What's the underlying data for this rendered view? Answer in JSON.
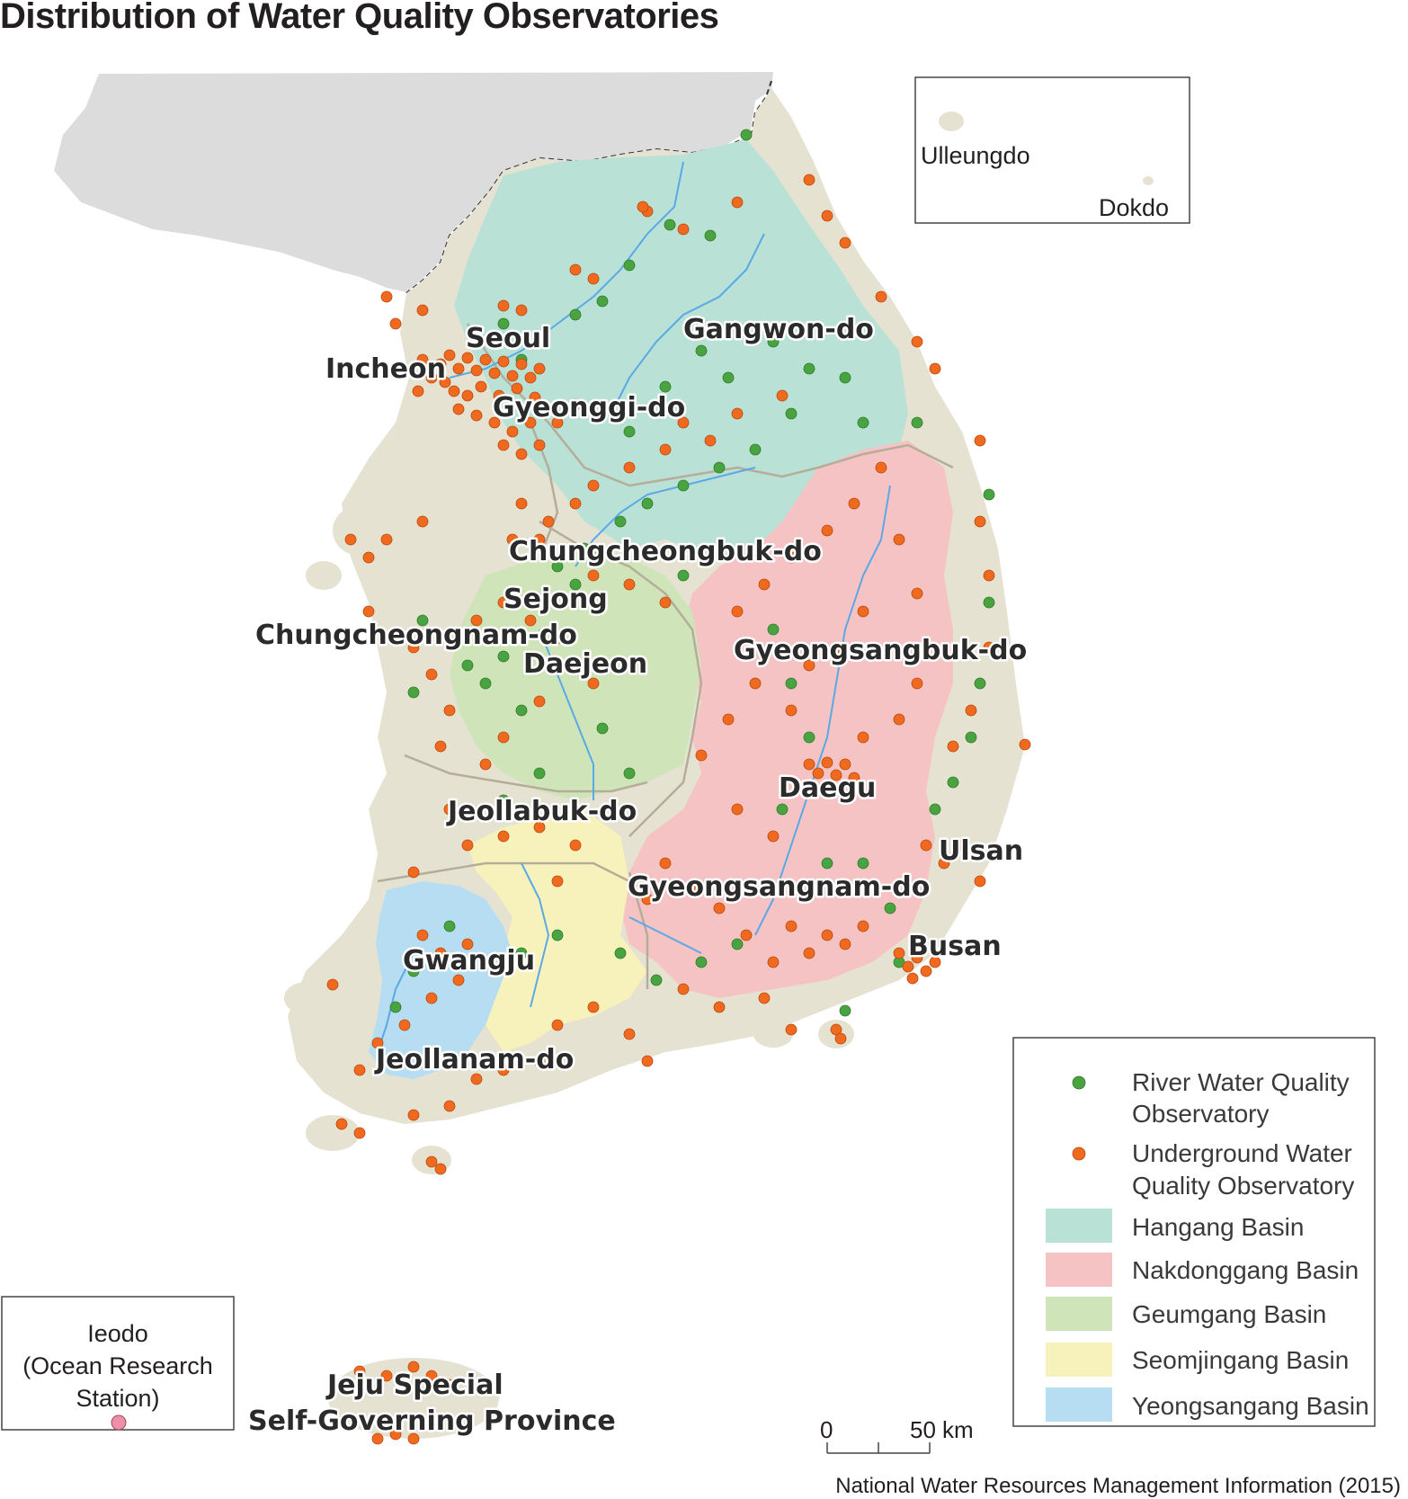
{
  "title": "Distribution of Water Quality Observatories",
  "source": "National Water Resources Management Information (2015)",
  "insets": {
    "ulleung": {
      "label_ulleungdo": "Ulleungdo",
      "label_dokdo": "Dokdo"
    },
    "ieodo": {
      "line1": "Ieodo",
      "line2": "(Ocean Research",
      "line3": "Station)"
    }
  },
  "regions": {
    "seoul": "Seoul",
    "incheon": "Incheon",
    "gyeonggi": "Gyeonggi-do",
    "gangwon": "Gangwon-do",
    "chungbuk": "Chungcheongbuk-do",
    "sejong": "Sejong",
    "chungnam": "Chungcheongnam-do",
    "daejeon": "Daejeon",
    "gyeongbuk": "Gyeongsangbuk-do",
    "daegu": "Daegu",
    "jeonbuk": "Jeollabuk-do",
    "ulsan": "Ulsan",
    "gyeongnam": "Gyeongsangnam-do",
    "busan": "Busan",
    "gwangju": "Gwangju",
    "jeonnam": "Jeollanam-do",
    "jeju_line1": "Jeju Special",
    "jeju_line2": "Self-Governing Province"
  },
  "legend": {
    "river_line1": "River Water Quality",
    "river_line2": "Observatory",
    "ground_line1": "Underground Water",
    "ground_line2": "Quality Observatory",
    "hangang": "Hangang Basin",
    "nakdong": "Nakdonggang Basin",
    "geumgang": "Geumgang Basin",
    "seomjin": "Seomjingang Basin",
    "yeongsan": "Yeongsangang Basin"
  },
  "scale": {
    "zero": "0",
    "fifty": "50",
    "unit": "km"
  },
  "colors": {
    "river_point": "#4aa341",
    "ground_point": "#ef6a1f",
    "hangang": "#b9e1d6",
    "nakdong": "#f5c3c3",
    "geumgang": "#cfe5b9",
    "seomjin": "#f7f2bb",
    "yeongsan": "#b7ddf2",
    "land": "#e6e2d2",
    "north": "#dcdcdc",
    "ieodo_point": "#ef8fa7"
  }
}
